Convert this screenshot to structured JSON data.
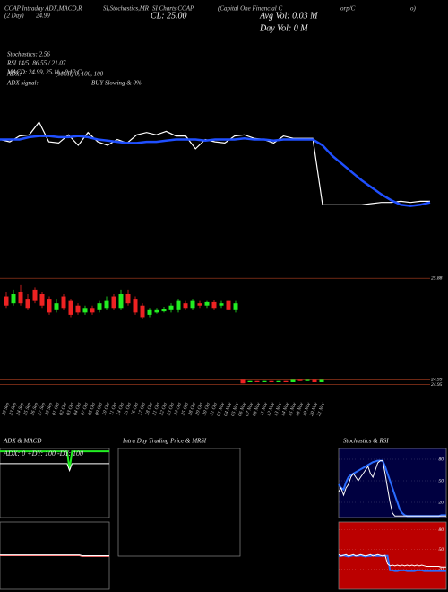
{
  "header": {
    "title_parts": [
      "CCAP Intraday ADX,MACD,R",
      "SI,Stochastics,MR",
      "SI Charts CCAP",
      "(Capital One Financial C",
      "orp/C",
      "o)"
    ],
    "day_label": "(2 Day)",
    "day_price": "24.99",
    "close": "CL: 25.00",
    "avg_vol": "Avg Vol: 0.03 M",
    "day_vol": "Day Vol: 0  M",
    "stats": [
      "Stochastics: 2.56",
      "RSI 14/5: 86.55 / 21.07",
      "MACD: 24.99, 25.11, -0.12  C"
    ],
    "adx_label": "ADX:",
    "adx_value": "(MGR) 0,  100,  100",
    "signal_label": "ADX  signal:",
    "signal_value": "BUY Slowing & 0%"
  },
  "intraday_panel": {
    "title": "Intra Day Trading Price  & MRSI"
  },
  "chart_data": [
    {
      "type": "line",
      "ylim": [
        24.85,
        25.85
      ],
      "series": [
        {
          "color": "#ffffff",
          "values": [
            25.5,
            25.48,
            25.53,
            25.54,
            25.65,
            25.48,
            25.47,
            25.54,
            25.45,
            25.56,
            25.48,
            25.45,
            25.5,
            25.47,
            25.54,
            25.56,
            25.54,
            25.57,
            25.53,
            25.53,
            25.42,
            25.5,
            25.48,
            25.47,
            25.53,
            25.54,
            25.51,
            25.5,
            25.47,
            25.53,
            25.51,
            25.51,
            25.51,
            24.94,
            24.94,
            24.94,
            24.94,
            24.94,
            24.95,
            24.96,
            24.96,
            24.97,
            24.96,
            24.97,
            24.97
          ]
        },
        {
          "color": "#1f4fff",
          "values": [
            25.5,
            25.5,
            25.5,
            25.52,
            25.53,
            25.53,
            25.52,
            25.52,
            25.53,
            25.52,
            25.5,
            25.49,
            25.48,
            25.47,
            25.47,
            25.48,
            25.48,
            25.49,
            25.5,
            25.5,
            25.5,
            25.49,
            25.5,
            25.5,
            25.5,
            25.51,
            25.5,
            25.5,
            25.49,
            25.5,
            25.5,
            25.5,
            25.5,
            25.45,
            25.36,
            25.29,
            25.22,
            25.15,
            25.09,
            25.03,
            24.98,
            24.94,
            24.93,
            24.94,
            24.96
          ]
        }
      ]
    },
    {
      "type": "candlestick",
      "ylim": [
        24.86,
        25.96
      ],
      "yticks": [
        25.88,
        24.99,
        24.95
      ],
      "up_color": "#22ee22",
      "down_color": "#ee2222",
      "categories": [
        "20 Sep",
        "23 Sep",
        "24 Sep",
        "25 Sep",
        "26 Sep",
        "27 Sep",
        "30 Sep",
        "01 Oct",
        "02 Oct",
        "03 Oct",
        "04 Oct",
        "07 Oct",
        "08 Oct",
        "09 Oct",
        "10 Oct",
        "11 Oct",
        "14 Oct",
        "15 Oct",
        "16 Oct",
        "17 Oct",
        "18 Oct",
        "21 Oct",
        "22 Oct",
        "23 Oct",
        "24 Oct",
        "25 Oct",
        "28 Oct",
        "29 Oct",
        "30 Oct",
        "31 Oct",
        "01 Nov",
        "04 Nov",
        "05 Nov",
        "06 Nov",
        "07 Nov",
        "08 Nov",
        "11 Nov",
        "12 Nov",
        "13 Nov",
        "14 Nov",
        "15 Nov",
        "18 Nov",
        "19 Nov",
        "20 Nov",
        "21 Nov"
      ],
      "open": [
        25.72,
        25.66,
        25.76,
        25.7,
        25.78,
        25.74,
        25.7,
        25.6,
        25.72,
        25.68,
        25.64,
        25.58,
        25.62,
        25.6,
        25.62,
        25.72,
        25.62,
        25.74,
        25.7,
        25.64,
        25.56,
        25.58,
        25.59,
        25.6,
        25.6,
        25.66,
        25.62,
        25.66,
        25.64,
        25.67,
        25.64,
        25.68,
        25.6,
        24.99,
        24.97,
        24.98,
        24.97,
        24.98,
        24.97,
        24.98,
        24.97,
        24.99,
        24.98,
        24.99,
        24.97
      ],
      "high": [
        25.76,
        25.78,
        25.82,
        25.74,
        25.8,
        25.76,
        25.72,
        25.7,
        25.74,
        25.7,
        25.66,
        25.64,
        25.64,
        25.68,
        25.72,
        25.74,
        25.78,
        25.78,
        25.72,
        25.66,
        25.62,
        25.62,
        25.63,
        25.66,
        25.7,
        25.68,
        25.7,
        25.68,
        25.68,
        25.69,
        25.68,
        25.68,
        25.68,
        24.99,
        24.98,
        24.98,
        24.98,
        24.98,
        24.98,
        24.98,
        24.99,
        24.99,
        24.99,
        24.99,
        24.99
      ],
      "low": [
        25.62,
        25.64,
        25.64,
        25.6,
        25.66,
        25.62,
        25.56,
        25.58,
        25.6,
        25.54,
        25.56,
        25.56,
        25.56,
        25.58,
        25.6,
        25.6,
        25.6,
        25.64,
        25.56,
        25.52,
        25.54,
        25.57,
        25.58,
        25.58,
        25.58,
        25.6,
        25.6,
        25.62,
        25.62,
        25.6,
        25.62,
        25.6,
        25.58,
        24.96,
        24.97,
        24.97,
        24.97,
        24.97,
        24.97,
        24.97,
        24.97,
        24.98,
        24.98,
        24.97,
        24.97
      ],
      "close": [
        25.64,
        25.74,
        25.66,
        25.62,
        25.68,
        25.64,
        25.58,
        25.66,
        25.62,
        25.56,
        25.58,
        25.62,
        25.58,
        25.66,
        25.68,
        25.62,
        25.74,
        25.66,
        25.58,
        25.54,
        25.6,
        25.6,
        25.61,
        25.64,
        25.68,
        25.62,
        25.68,
        25.64,
        25.67,
        25.62,
        25.66,
        25.6,
        25.66,
        24.96,
        24.98,
        24.97,
        24.98,
        24.97,
        24.98,
        24.97,
        24.99,
        24.98,
        24.99,
        24.97,
        24.99
      ]
    },
    {
      "type": "line",
      "title": "ADX  & MACD",
      "label": "ADX: 0  +DY: 100  -DY: 100",
      "ylim": [
        0,
        100
      ],
      "series": [
        {
          "color": "#22ee22",
          "values": [
            96,
            96,
            96,
            96,
            96,
            96,
            96,
            96,
            96,
            96,
            96,
            96,
            96,
            96,
            96,
            96,
            96,
            96,
            96,
            96,
            96,
            96,
            96,
            96,
            96,
            96,
            96,
            96,
            70,
            96,
            96,
            96,
            96,
            96,
            96,
            96,
            96,
            96,
            96,
            96,
            96,
            96,
            96,
            96,
            96
          ]
        },
        {
          "color": "#ffffff",
          "values": [
            78,
            78,
            78,
            78,
            78,
            78,
            78,
            78,
            78,
            78,
            78,
            78,
            78,
            78,
            78,
            78,
            78,
            78,
            78,
            78,
            78,
            78,
            78,
            78,
            78,
            78,
            78,
            78,
            68,
            78,
            78,
            78,
            78,
            78,
            78,
            78,
            78,
            78,
            78,
            78,
            78,
            78,
            78,
            78,
            78
          ]
        }
      ]
    },
    {
      "type": "line",
      "ylim": [
        24.6,
        25.4
      ],
      "series": [
        {
          "color": "#ff7070",
          "values": [
            25.0,
            25.0,
            25.0,
            25.0,
            25.0,
            25.0,
            25.0,
            25.0,
            25.0,
            25.0,
            25.0,
            25.0,
            25.0,
            25.0,
            25.0,
            25.0,
            25.0,
            25.0,
            25.0,
            25.0,
            25.0,
            25.0,
            25.0,
            25.0,
            25.0,
            25.0,
            25.0,
            25.0,
            25.0,
            25.0,
            25.0,
            25.0,
            25.0,
            24.99,
            24.99,
            24.99,
            24.99,
            24.99,
            24.99,
            24.99,
            24.99,
            24.99,
            24.99,
            24.99,
            24.99
          ]
        },
        {
          "color": "#ffffff",
          "values": [
            25.01,
            25.01,
            25.01,
            25.01,
            25.01,
            25.01,
            25.01,
            25.01,
            25.01,
            25.01,
            25.01,
            25.01,
            25.01,
            25.01,
            25.01,
            25.01,
            25.01,
            25.01,
            25.01,
            25.01,
            25.01,
            25.01,
            25.01,
            25.01,
            25.01,
            25.01,
            25.01,
            25.01,
            25.01,
            25.01,
            25.01,
            25.01,
            25.01,
            25.0,
            25.0,
            25.0,
            25.0,
            25.0,
            25.0,
            25.0,
            25.0,
            25.0,
            25.0,
            25.0,
            25.0
          ]
        }
      ]
    },
    {
      "type": "line",
      "title": "Stochastics & RSI",
      "background": "#000040",
      "ylim": [
        0,
        100
      ],
      "yticks": [
        80,
        50,
        20
      ],
      "series": [
        {
          "color": "#2a6cff",
          "values": [
            45,
            40,
            38,
            48,
            55,
            58,
            60,
            62,
            64,
            66,
            68,
            70,
            72,
            74,
            76,
            77,
            78,
            78,
            78,
            70,
            60,
            50,
            40,
            30,
            20,
            10,
            5,
            2,
            1,
            1,
            1,
            1,
            1,
            1,
            1,
            1,
            1,
            1,
            1,
            1,
            1,
            1,
            2,
            2,
            2
          ]
        },
        {
          "color": "#ffffff",
          "values": [
            35,
            40,
            30,
            40,
            45,
            55,
            60,
            55,
            50,
            55,
            60,
            65,
            70,
            60,
            55,
            65,
            75,
            78,
            78,
            60,
            40,
            20,
            5,
            1,
            1,
            1,
            1,
            1,
            1,
            1,
            1,
            1,
            1,
            1,
            1,
            1,
            1,
            1,
            1,
            1,
            1,
            1,
            1,
            1,
            1
          ]
        }
      ]
    },
    {
      "type": "line",
      "background": "#bb0000",
      "ylim": [
        0,
        100
      ],
      "yticks": [
        80,
        50,
        20
      ],
      "series": [
        {
          "color": "#2a6cff",
          "values": [
            40,
            40,
            41,
            40,
            39,
            40,
            41,
            40,
            40,
            41,
            40,
            39,
            40,
            40,
            41,
            40,
            40,
            40,
            40,
            40,
            40,
            18,
            18,
            17,
            17,
            18,
            18,
            18,
            17,
            17,
            17,
            17,
            18,
            18,
            18,
            17,
            17,
            17,
            17,
            17,
            17,
            17,
            17,
            17,
            17
          ]
        },
        {
          "color": "#ffffff",
          "values": [
            42,
            40,
            41,
            42,
            40,
            41,
            42,
            40,
            41,
            42,
            41,
            40,
            41,
            42,
            40,
            41,
            42,
            41,
            40,
            41,
            28,
            25,
            26,
            25,
            26,
            25,
            26,
            25,
            26,
            25,
            26,
            25,
            26,
            25,
            26,
            25,
            24,
            24,
            24,
            24,
            24,
            24,
            23,
            23,
            23
          ]
        }
      ]
    }
  ]
}
